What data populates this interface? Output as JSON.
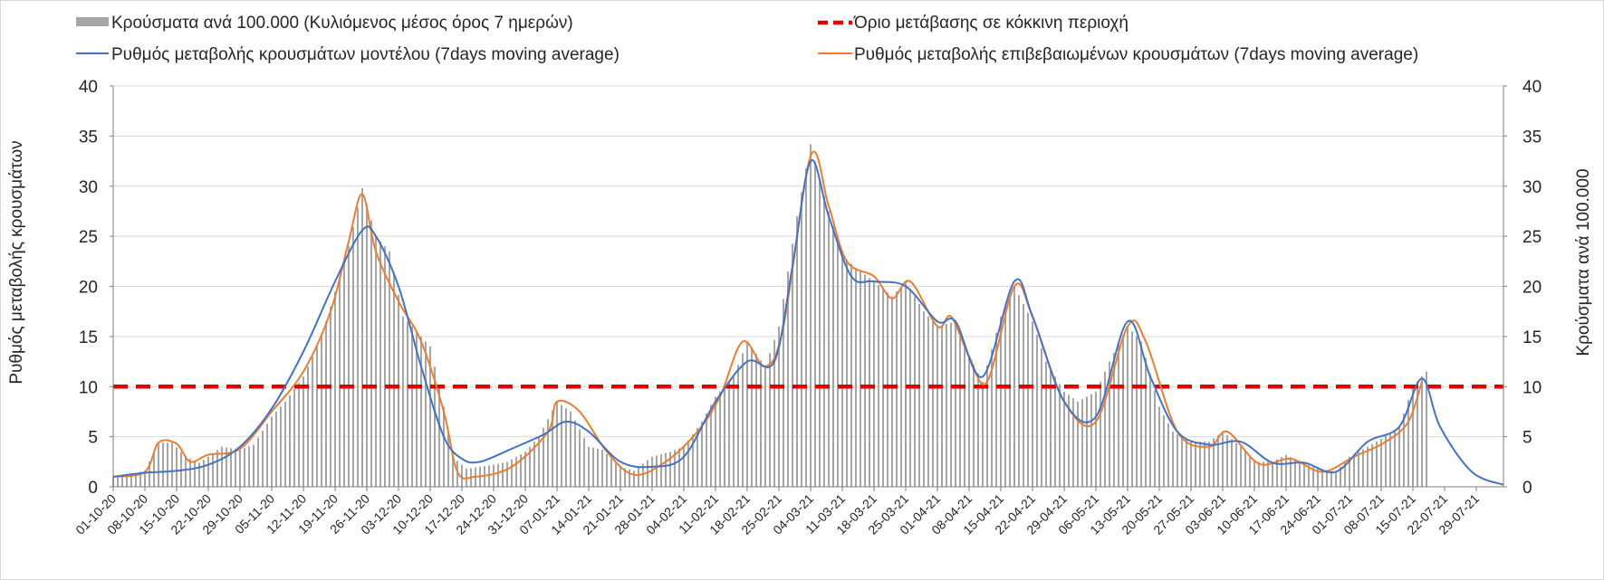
{
  "chart_data": {
    "type": "bar+line",
    "title": "",
    "ylabel_left": "Ρυθμός μεταβολής κρουσμάτων",
    "ylabel_right": "Κρούσματα ανά 100.000",
    "ylim_left": [
      0,
      40
    ],
    "ylim_right": [
      0,
      40
    ],
    "yticks": [
      "0",
      "5",
      "10",
      "15",
      "20",
      "25",
      "30",
      "35",
      "40"
    ],
    "grid": true,
    "legend_position": "top",
    "x_start": "2020-10-01",
    "x_end": "2021-08-04",
    "x_tick_labels": [
      "01-10-20",
      "08-10-20",
      "15-10-20",
      "22-10-20",
      "29-10-20",
      "05-11-20",
      "12-11-20",
      "19-11-20",
      "26-11-20",
      "03-12-20",
      "10-12-20",
      "17-12-20",
      "24-12-20",
      "31-12-20",
      "07-01-21",
      "14-01-21",
      "21-01-21",
      "28-01-21",
      "04-02-21",
      "11-02-21",
      "18-02-21",
      "25-02-21",
      "04-03-21",
      "11-03-21",
      "18-03-21",
      "25-03-21",
      "01-04-21",
      "08-04-21",
      "15-04-21",
      "22-04-21",
      "29-04-21",
      "06-05-21",
      "13-05-21",
      "20-05-21",
      "27-05-21",
      "03-06-21",
      "10-06-21",
      "17-06-21",
      "24-06-21",
      "01-07-21",
      "08-07-21",
      "15-07-21",
      "22-07-21",
      "29-07-21"
    ],
    "series": [
      {
        "name": "Κρούσματα ανά 100.000 (Κυλιόμενος μέσος όρος 7 ημερών)",
        "kind": "bar",
        "color": "#a6a6a6",
        "points": [
          [
            "2020-10-01",
            1.0
          ],
          [
            "2020-10-05",
            1.3
          ],
          [
            "2020-10-08",
            1.6
          ],
          [
            "2020-10-11",
            4.4
          ],
          [
            "2020-10-14",
            4.4
          ],
          [
            "2020-10-17",
            3.0
          ],
          [
            "2020-10-20",
            2.4
          ],
          [
            "2020-10-22",
            3.0
          ],
          [
            "2020-10-25",
            4.0
          ],
          [
            "2020-10-29",
            3.7
          ],
          [
            "2020-11-01",
            4.2
          ],
          [
            "2020-11-05",
            7.0
          ],
          [
            "2020-11-08",
            8.5
          ],
          [
            "2020-11-12",
            11.0
          ],
          [
            "2020-11-16",
            15.0
          ],
          [
            "2020-11-19",
            19.5
          ],
          [
            "2020-11-22",
            24.0
          ],
          [
            "2020-11-25",
            29.8
          ],
          [
            "2020-11-28",
            25.0
          ],
          [
            "2020-12-01",
            23.5
          ],
          [
            "2020-12-04",
            17.0
          ],
          [
            "2020-12-07",
            15.5
          ],
          [
            "2020-12-10",
            14.0
          ],
          [
            "2020-12-13",
            8.0
          ],
          [
            "2020-12-15",
            3.0
          ],
          [
            "2020-12-18",
            1.8
          ],
          [
            "2020-12-21",
            2.0
          ],
          [
            "2020-12-24",
            2.2
          ],
          [
            "2020-12-27",
            2.5
          ],
          [
            "2020-12-31",
            3.5
          ],
          [
            "2021-01-03",
            5.0
          ],
          [
            "2021-01-07",
            8.5
          ],
          [
            "2021-01-10",
            7.5
          ],
          [
            "2021-01-14",
            4.0
          ],
          [
            "2021-01-17",
            3.7
          ],
          [
            "2021-01-21",
            2.0
          ],
          [
            "2021-01-24",
            1.6
          ],
          [
            "2021-01-28",
            3.0
          ],
          [
            "2021-02-01",
            3.5
          ],
          [
            "2021-02-04",
            4.0
          ],
          [
            "2021-02-08",
            6.5
          ],
          [
            "2021-02-11",
            9.0
          ],
          [
            "2021-02-15",
            11.0
          ],
          [
            "2021-02-18",
            14.5
          ],
          [
            "2021-02-22",
            12.0
          ],
          [
            "2021-02-25",
            16.0
          ],
          [
            "2021-03-01",
            27.0
          ],
          [
            "2021-03-04",
            34.2
          ],
          [
            "2021-03-07",
            29.0
          ],
          [
            "2021-03-11",
            23.0
          ],
          [
            "2021-03-15",
            21.5
          ],
          [
            "2021-03-18",
            20.5
          ],
          [
            "2021-03-22",
            19.0
          ],
          [
            "2021-03-25",
            20.5
          ],
          [
            "2021-03-29",
            17.5
          ],
          [
            "2021-04-01",
            16.0
          ],
          [
            "2021-04-05",
            16.5
          ],
          [
            "2021-04-08",
            13.0
          ],
          [
            "2021-04-11",
            10.5
          ],
          [
            "2021-04-15",
            17.0
          ],
          [
            "2021-04-18",
            20.0
          ],
          [
            "2021-04-22",
            16.5
          ],
          [
            "2021-04-25",
            12.5
          ],
          [
            "2021-04-29",
            9.5
          ],
          [
            "2021-05-02",
            8.5
          ],
          [
            "2021-05-06",
            9.5
          ],
          [
            "2021-05-09",
            12.5
          ],
          [
            "2021-05-13",
            16.0
          ],
          [
            "2021-05-16",
            14.5
          ],
          [
            "2021-05-20",
            8.0
          ],
          [
            "2021-05-23",
            5.5
          ],
          [
            "2021-05-27",
            4.5
          ],
          [
            "2021-05-31",
            4.5
          ],
          [
            "2021-06-03",
            5.5
          ],
          [
            "2021-06-07",
            4.0
          ],
          [
            "2021-06-10",
            2.5
          ],
          [
            "2021-06-14",
            2.5
          ],
          [
            "2021-06-17",
            3.2
          ],
          [
            "2021-06-21",
            2.3
          ],
          [
            "2021-06-24",
            1.8
          ],
          [
            "2021-06-28",
            1.5
          ],
          [
            "2021-07-01",
            3.0
          ],
          [
            "2021-07-05",
            4.0
          ],
          [
            "2021-07-08",
            4.8
          ],
          [
            "2021-07-12",
            6.0
          ],
          [
            "2021-07-15",
            10.0
          ],
          [
            "2021-07-18",
            11.5
          ]
        ]
      },
      {
        "name": "Όριο μετάβασης σε κόκκινη περιοχή",
        "kind": "line",
        "style": "dashed",
        "color": "#e00000",
        "points": [
          [
            "2020-10-01",
            10
          ],
          [
            "2021-08-04",
            10
          ]
        ]
      },
      {
        "name": "Ρυθμός μεταβολής κρουσμάτων μοντέλου (7days moving average)",
        "kind": "line",
        "color": "#4472c4",
        "points": [
          [
            "2020-10-01",
            1.0
          ],
          [
            "2020-10-08",
            1.4
          ],
          [
            "2020-10-15",
            1.6
          ],
          [
            "2020-10-22",
            2.2
          ],
          [
            "2020-10-29",
            4.0
          ],
          [
            "2020-11-05",
            7.8
          ],
          [
            "2020-11-12",
            13.5
          ],
          [
            "2020-11-19",
            20.5
          ],
          [
            "2020-11-25",
            25.6
          ],
          [
            "2020-11-28",
            25.0
          ],
          [
            "2020-12-03",
            20.0
          ],
          [
            "2020-12-08",
            12.0
          ],
          [
            "2020-12-13",
            5.0
          ],
          [
            "2020-12-17",
            2.8
          ],
          [
            "2020-12-21",
            2.5
          ],
          [
            "2020-12-28",
            3.8
          ],
          [
            "2021-01-04",
            5.2
          ],
          [
            "2021-01-09",
            6.5
          ],
          [
            "2021-01-14",
            5.5
          ],
          [
            "2021-01-21",
            2.5
          ],
          [
            "2021-01-28",
            2.0
          ],
          [
            "2021-02-04",
            3.0
          ],
          [
            "2021-02-11",
            8.5
          ],
          [
            "2021-02-18",
            12.5
          ],
          [
            "2021-02-24",
            12.5
          ],
          [
            "2021-02-28",
            22.0
          ],
          [
            "2021-03-04",
            32.5
          ],
          [
            "2021-03-08",
            27.0
          ],
          [
            "2021-03-13",
            21.0
          ],
          [
            "2021-03-18",
            20.5
          ],
          [
            "2021-03-25",
            20.0
          ],
          [
            "2021-04-01",
            16.5
          ],
          [
            "2021-04-05",
            16.5
          ],
          [
            "2021-04-11",
            11.0
          ],
          [
            "2021-04-18",
            20.5
          ],
          [
            "2021-04-22",
            17.0
          ],
          [
            "2021-04-29",
            8.5
          ],
          [
            "2021-05-06",
            7.0
          ],
          [
            "2021-05-13",
            16.5
          ],
          [
            "2021-05-18",
            11.0
          ],
          [
            "2021-05-24",
            5.5
          ],
          [
            "2021-05-31",
            4.2
          ],
          [
            "2021-06-07",
            4.5
          ],
          [
            "2021-06-14",
            2.4
          ],
          [
            "2021-06-21",
            2.4
          ],
          [
            "2021-06-28",
            1.5
          ],
          [
            "2021-07-05",
            4.5
          ],
          [
            "2021-07-12",
            6.0
          ],
          [
            "2021-07-17",
            10.8
          ],
          [
            "2021-07-21",
            6.0
          ],
          [
            "2021-07-28",
            1.5
          ],
          [
            "2021-08-04",
            0.2
          ]
        ]
      },
      {
        "name": "Ρυθμός μεταβολής επιβεβαιωμένων κρουσμάτων (7days moving average)",
        "kind": "line",
        "color": "#ed7d31",
        "points": [
          [
            "2020-10-01",
            1.0
          ],
          [
            "2020-10-08",
            1.5
          ],
          [
            "2020-10-11",
            4.4
          ],
          [
            "2020-10-15",
            4.3
          ],
          [
            "2020-10-18",
            2.5
          ],
          [
            "2020-10-22",
            3.2
          ],
          [
            "2020-10-29",
            3.8
          ],
          [
            "2020-11-05",
            7.5
          ],
          [
            "2020-11-12",
            11.5
          ],
          [
            "2020-11-18",
            17.5
          ],
          [
            "2020-11-22",
            24.5
          ],
          [
            "2020-11-25",
            29.2
          ],
          [
            "2020-11-28",
            23.5
          ],
          [
            "2020-12-03",
            18.5
          ],
          [
            "2020-12-08",
            14.5
          ],
          [
            "2020-12-13",
            7.5
          ],
          [
            "2020-12-16",
            1.5
          ],
          [
            "2020-12-20",
            1.0
          ],
          [
            "2020-12-28",
            2.0
          ],
          [
            "2021-01-05",
            5.5
          ],
          [
            "2021-01-07",
            8.5
          ],
          [
            "2021-01-12",
            7.5
          ],
          [
            "2021-01-18",
            3.5
          ],
          [
            "2021-01-24",
            1.2
          ],
          [
            "2021-01-31",
            2.5
          ],
          [
            "2021-02-07",
            5.5
          ],
          [
            "2021-02-12",
            9.0
          ],
          [
            "2021-02-17",
            14.5
          ],
          [
            "2021-02-22",
            12.0
          ],
          [
            "2021-02-26",
            16.0
          ],
          [
            "2021-03-04",
            33.0
          ],
          [
            "2021-03-08",
            28.0
          ],
          [
            "2021-03-12",
            22.5
          ],
          [
            "2021-03-18",
            21.0
          ],
          [
            "2021-03-22",
            18.8
          ],
          [
            "2021-03-26",
            20.5
          ],
          [
            "2021-04-01",
            16.0
          ],
          [
            "2021-04-04",
            17.0
          ],
          [
            "2021-04-08",
            13.0
          ],
          [
            "2021-04-12",
            10.5
          ],
          [
            "2021-04-18",
            20.0
          ],
          [
            "2021-04-22",
            17.0
          ],
          [
            "2021-04-29",
            8.5
          ],
          [
            "2021-05-06",
            6.5
          ],
          [
            "2021-05-13",
            16.0
          ],
          [
            "2021-05-17",
            14.5
          ],
          [
            "2021-05-24",
            5.5
          ],
          [
            "2021-05-31",
            4.0
          ],
          [
            "2021-06-04",
            5.5
          ],
          [
            "2021-06-11",
            2.3
          ],
          [
            "2021-06-18",
            2.8
          ],
          [
            "2021-06-25",
            1.5
          ],
          [
            "2021-07-02",
            3.0
          ],
          [
            "2021-07-09",
            4.5
          ],
          [
            "2021-07-14",
            6.5
          ],
          [
            "2021-07-17",
            10.5
          ]
        ]
      }
    ]
  },
  "colors": {
    "bar": "#a6a6a6",
    "model": "#4472c4",
    "confirmed": "#ed7d31",
    "threshold": "#e00000",
    "grid": "#d9d9d9"
  }
}
